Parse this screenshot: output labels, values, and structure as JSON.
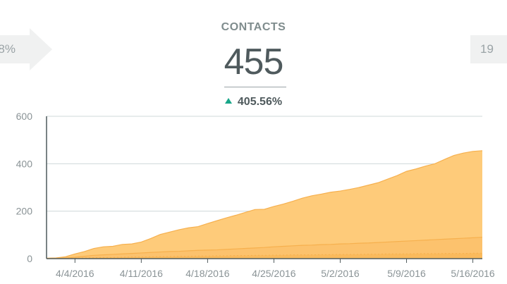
{
  "prev_panel": {
    "text": "8%"
  },
  "next_panel": {
    "text": "19"
  },
  "metric": {
    "title": "CONTACTS",
    "value": "455",
    "change": "405.56%"
  },
  "colors": {
    "accent_up": "#18a689",
    "area_main": "#fecb7a",
    "area_secondary": "#f9bb62",
    "line": "#f6b04e"
  },
  "chart_data": {
    "type": "area",
    "x": [
      "4/1/2016",
      "4/2/2016",
      "4/3/2016",
      "4/4/2016",
      "4/5/2016",
      "4/6/2016",
      "4/7/2016",
      "4/8/2016",
      "4/9/2016",
      "4/10/2016",
      "4/11/2016",
      "4/12/2016",
      "4/13/2016",
      "4/14/2016",
      "4/15/2016",
      "4/16/2016",
      "4/17/2016",
      "4/18/2016",
      "4/19/2016",
      "4/20/2016",
      "4/21/2016",
      "4/22/2016",
      "4/23/2016",
      "4/24/2016",
      "4/25/2016",
      "4/26/2016",
      "4/27/2016",
      "4/28/2016",
      "4/29/2016",
      "4/30/2016",
      "5/1/2016",
      "5/2/2016",
      "5/3/2016",
      "5/4/2016",
      "5/5/2016",
      "5/6/2016",
      "5/7/2016",
      "5/8/2016",
      "5/9/2016",
      "5/10/2016",
      "5/11/2016",
      "5/12/2016",
      "5/13/2016",
      "5/14/2016",
      "5/15/2016",
      "5/16/2016",
      "5/17/2016"
    ],
    "x_ticks": [
      "4/4/2016",
      "4/11/2016",
      "4/18/2016",
      "4/25/2016",
      "5/2/2016",
      "5/9/2016",
      "5/16/2016"
    ],
    "series": [
      {
        "values": [
          2,
          3,
          8,
          20,
          30,
          43,
          50,
          52,
          60,
          62,
          70,
          85,
          102,
          112,
          122,
          130,
          135,
          148,
          160,
          172,
          183,
          195,
          207,
          208,
          220,
          230,
          242,
          255,
          265,
          272,
          280,
          285,
          292,
          300,
          310,
          320,
          335,
          350,
          368,
          378,
          390,
          400,
          418,
          435,
          445,
          452,
          455
        ]
      },
      {
        "values": [
          0,
          1,
          3,
          6,
          10,
          14,
          16,
          18,
          20,
          22,
          24,
          26,
          28,
          30,
          31,
          33,
          35,
          36,
          37,
          39,
          41,
          43,
          45,
          47,
          50,
          52,
          54,
          56,
          57,
          59,
          60,
          62,
          63,
          65,
          66,
          68,
          70,
          72,
          74,
          76,
          78,
          80,
          82,
          84,
          86,
          88,
          90
        ]
      },
      {
        "values": [
          0,
          1,
          1,
          2,
          3,
          4,
          5,
          5,
          6,
          7,
          7,
          8,
          9,
          9,
          10,
          10,
          11,
          11,
          12,
          12,
          13,
          13,
          14,
          14,
          15,
          15,
          16,
          16,
          16,
          17,
          17,
          18,
          18,
          18,
          19,
          19,
          20,
          20,
          20,
          21,
          21,
          21,
          22,
          22,
          22,
          23,
          23
        ]
      }
    ],
    "y_ticks": [
      "0",
      "200",
      "400",
      "600"
    ],
    "ylim": [
      0,
      600
    ],
    "grid": true
  }
}
